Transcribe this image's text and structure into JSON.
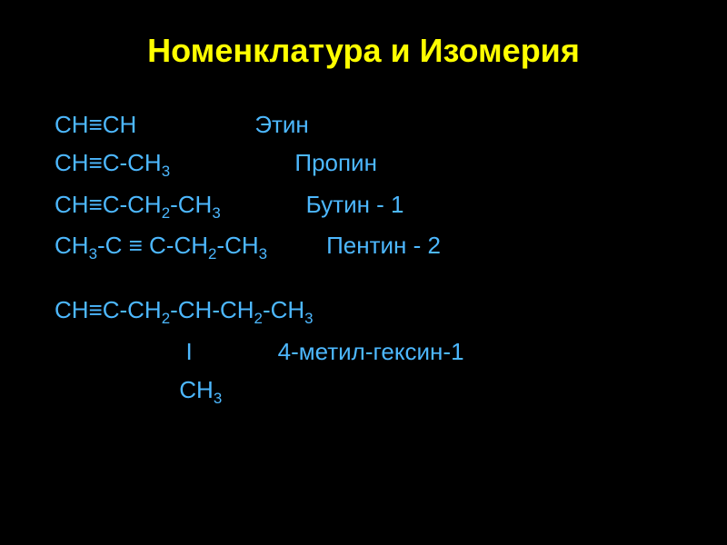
{
  "slide": {
    "title": "Номенклатура и Изомерия",
    "background_color": "#000000",
    "title_color": "#ffff00",
    "text_color": "#4db8ff",
    "title_fontsize": 36,
    "body_fontsize": 26,
    "rows": [
      {
        "formula_html": "CH≡CH",
        "gap": "                  ",
        "name": "Этин"
      },
      {
        "formula_html": "CH≡C-CH<sub class='sub3'>3</sub>",
        "gap": "                   ",
        "name": "Пропин"
      },
      {
        "formula_html": "CH≡C-CH<sub class='sub3'>2</sub>-CH<sub class='sub3'>3</sub>",
        "gap": "             ",
        "name": "Бутин - 1"
      },
      {
        "formula_html": "CH<sub class='sub3'>3</sub>-C ≡ C-CH<sub class='sub3'>2</sub>-CH<sub class='sub3'>3</sub>",
        "gap": "         ",
        "name": "Пентин - 2"
      }
    ],
    "compound2": {
      "line1_html": "CH≡C-CH<sub class='sub3'>2</sub>-CH-CH<sub class='sub3'>2</sub>-CH<sub class='sub3'>3</sub>",
      "line2_prefix": "                    ",
      "line2_bar": "I",
      "line2_gap": "             ",
      "line2_name": "4-метил-гексин-1",
      "line3_prefix": "                   ",
      "line3_html": "CH<sub class='sub3'>3</sub>"
    }
  }
}
